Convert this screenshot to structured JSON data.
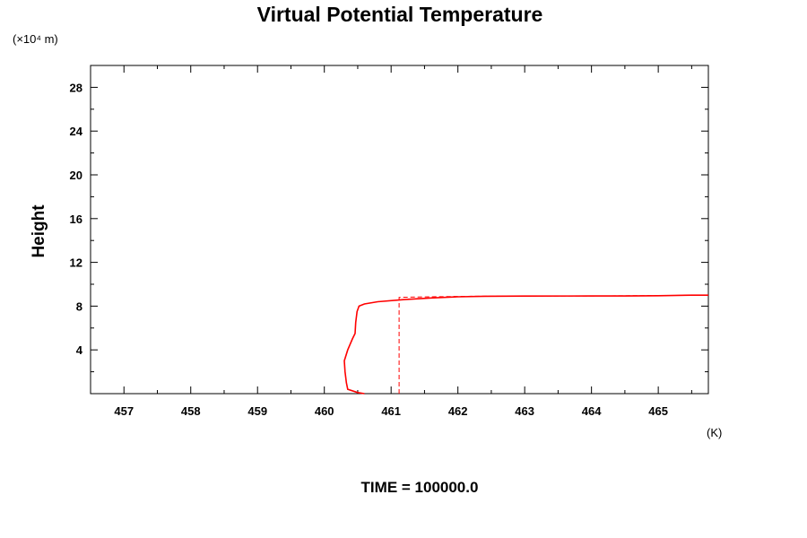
{
  "chart_data": {
    "type": "line",
    "title": "Virtual Potential Temperature",
    "ylabel": "Height",
    "y_unit": "(×10⁴ m)",
    "xlabel": "",
    "x_unit": "(K)",
    "footer": "TIME = 100000.0",
    "xlim": [
      456.5,
      465.75
    ],
    "ylim": [
      0,
      30
    ],
    "x_tick_labels": [
      "457",
      "458",
      "459",
      "460",
      "461",
      "462",
      "463",
      "464",
      "465"
    ],
    "y_tick_labels": [
      "4",
      "8",
      "12",
      "16",
      "20",
      "24",
      "28"
    ],
    "grid": false,
    "series": [
      {
        "style": "solid",
        "color": "#ff0000",
        "points": [
          [
            460.6,
            0.0
          ],
          [
            460.5,
            0.1
          ],
          [
            460.35,
            0.4
          ],
          [
            460.33,
            1.0
          ],
          [
            460.31,
            2.0
          ],
          [
            460.3,
            3.0
          ],
          [
            460.35,
            4.0
          ],
          [
            460.42,
            5.0
          ],
          [
            460.46,
            5.5
          ],
          [
            460.47,
            6.5
          ],
          [
            460.49,
            7.5
          ],
          [
            460.52,
            8.0
          ],
          [
            460.6,
            8.2
          ],
          [
            460.8,
            8.4
          ],
          [
            461.2,
            8.6
          ],
          [
            461.6,
            8.75
          ],
          [
            462.0,
            8.85
          ],
          [
            462.4,
            8.9
          ],
          [
            463.0,
            8.92
          ],
          [
            464.0,
            8.93
          ],
          [
            464.5,
            8.93
          ],
          [
            465.0,
            8.95
          ],
          [
            465.5,
            9.0
          ],
          [
            465.75,
            9.0
          ]
        ]
      },
      {
        "style": "dashed",
        "color": "#ff0000",
        "points": [
          [
            461.12,
            0.0
          ],
          [
            461.12,
            8.8
          ],
          [
            461.6,
            8.85
          ],
          [
            462.2,
            8.9
          ],
          [
            463.0,
            8.92
          ],
          [
            464.0,
            8.93
          ],
          [
            465.0,
            8.97
          ],
          [
            465.75,
            9.0
          ]
        ]
      }
    ]
  }
}
